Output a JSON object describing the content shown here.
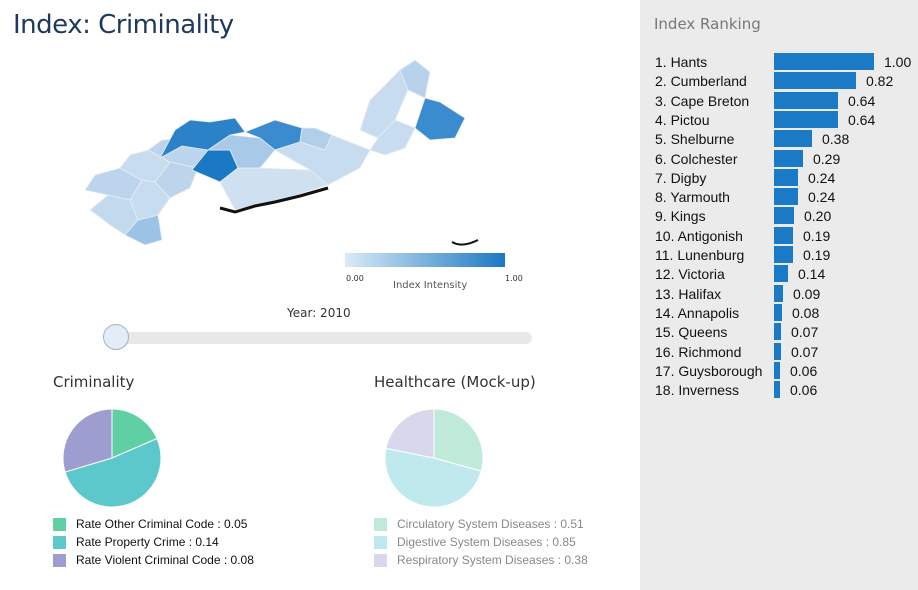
{
  "page": {
    "title": "Index: Criminality"
  },
  "map": {
    "legend": {
      "min_label": "0.00",
      "max_label": "1.00",
      "title": "Index Intensity",
      "color_low": "#dceaf6",
      "color_high": "#1b78c4"
    }
  },
  "slider": {
    "label": "Year: 2010"
  },
  "criminality": {
    "title": "Criminality",
    "legend": [
      {
        "label": "Rate Other Criminal Code : 0.05",
        "color": "#5fd0a3"
      },
      {
        "label": "Rate Property Crime : 0.14",
        "color": "#5cc8cc"
      },
      {
        "label": "Rate Violent Criminal Code : 0.08",
        "color": "#9d9dcf"
      }
    ]
  },
  "healthcare": {
    "title": "Healthcare (Mock-up)",
    "legend": [
      {
        "label": "Circulatory System Diseases : 0.51",
        "color": "#bfe9d8"
      },
      {
        "label": "Digestive System Diseases : 0.85",
        "color": "#bfe9ec"
      },
      {
        "label": "Respiratory System Diseases : 0.38",
        "color": "#d8d8ec"
      }
    ]
  },
  "ranking": {
    "title": "Index Ranking"
  },
  "chart_data": [
    {
      "type": "bar",
      "title": "Index Ranking",
      "orientation": "horizontal",
      "categories": [
        "1. Hants",
        "2. Cumberland",
        "3. Cape Breton",
        "4. Pictou",
        "5. Shelburne",
        "6. Colchester",
        "7. Digby",
        "8. Yarmouth",
        "9. Kings",
        "10. Antigonish",
        "11. Lunenburg",
        "12. Victoria",
        "13. Halifax",
        "14. Annapolis",
        "15. Queens",
        "16. Richmond",
        "17. Guysborough",
        "18. Inverness"
      ],
      "values": [
        1.0,
        0.82,
        0.64,
        0.64,
        0.38,
        0.29,
        0.24,
        0.24,
        0.2,
        0.19,
        0.19,
        0.14,
        0.09,
        0.08,
        0.07,
        0.07,
        0.06,
        0.06
      ],
      "labels": [
        "1.00",
        "0.82",
        "0.64",
        "0.64",
        "0.38",
        "0.29",
        "0.24",
        "0.24",
        "0.20",
        "0.19",
        "0.19",
        "0.14",
        "0.09",
        "0.08",
        "0.07",
        "0.07",
        "0.06",
        "0.06"
      ],
      "xlim": [
        0,
        1
      ],
      "color": "#1b7ac6"
    },
    {
      "type": "pie",
      "title": "Criminality",
      "categories": [
        "Rate Other Criminal Code",
        "Rate Property Crime",
        "Rate Violent Criminal Code"
      ],
      "values": [
        0.05,
        0.14,
        0.08
      ],
      "colors": [
        "#5fd0a3",
        "#5cc8cc",
        "#9d9dcf"
      ]
    },
    {
      "type": "pie",
      "title": "Healthcare (Mock-up)",
      "categories": [
        "Circulatory System Diseases",
        "Digestive System Diseases",
        "Respiratory System Diseases"
      ],
      "values": [
        0.51,
        0.85,
        0.38
      ],
      "colors": [
        "#bfe9d8",
        "#bfe9ec",
        "#d8d8ec"
      ]
    }
  ]
}
